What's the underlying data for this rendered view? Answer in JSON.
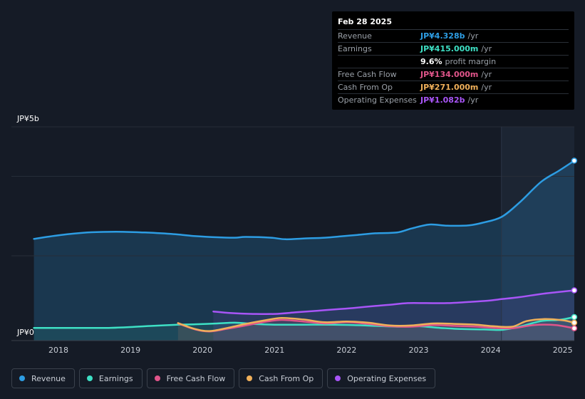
{
  "tooltip": {
    "date": "Feb 28 2025",
    "rows": [
      {
        "label": "Revenue",
        "value": "JP¥4.328b",
        "unit": "/yr",
        "color": "#2d9de3"
      },
      {
        "label": "Earnings",
        "value": "JP¥415.000m",
        "unit": "/yr",
        "color": "#3ee0c5"
      },
      {
        "label": "",
        "value": "9.6%",
        "unit": "profit margin",
        "color": "#ffffff"
      },
      {
        "label": "Free Cash Flow",
        "value": "JP¥134.000m",
        "unit": "/yr",
        "color": "#e0558a"
      },
      {
        "label": "Cash From Op",
        "value": "JP¥271.000m",
        "unit": "/yr",
        "color": "#f0b05a"
      },
      {
        "label": "Operating Expenses",
        "value": "JP¥1.082b",
        "unit": "/yr",
        "color": "#a855f7"
      }
    ]
  },
  "legend": [
    {
      "label": "Revenue",
      "color": "#2d9de3"
    },
    {
      "label": "Earnings",
      "color": "#3ee0c5"
    },
    {
      "label": "Free Cash Flow",
      "color": "#e0558a"
    },
    {
      "label": "Cash From Op",
      "color": "#f0b05a"
    },
    {
      "label": "Operating Expenses",
      "color": "#a855f7"
    }
  ],
  "chart_data": {
    "type": "line",
    "title": "",
    "unit": "JP¥ billions (annual, trailing)",
    "y_top_label": "JP¥5b",
    "y_bottom_label": "JP¥0",
    "ylim": [
      0,
      5
    ],
    "xlim": [
      2017.6,
      2025.2
    ],
    "x_ticks": [
      "2018",
      "2019",
      "2020",
      "2021",
      "2022",
      "2023",
      "2024",
      "2025"
    ],
    "x_tick_values": [
      2018,
      2019,
      2020,
      2021,
      2022,
      2023,
      2024,
      2025
    ],
    "forecast_band_start": 2024.15,
    "series": [
      {
        "name": "Revenue",
        "color": "#2d9de3",
        "x": [
          2017.66,
          2018.0,
          2018.4,
          2018.8,
          2019.2,
          2019.6,
          2019.9,
          2020.2,
          2020.45,
          2020.6,
          2020.95,
          2021.15,
          2021.4,
          2021.7,
          2021.9,
          2022.15,
          2022.4,
          2022.7,
          2022.9,
          2023.15,
          2023.4,
          2023.7,
          2023.9,
          2024.15,
          2024.4,
          2024.7,
          2024.95,
          2025.16
        ],
        "values": [
          2.37,
          2.46,
          2.53,
          2.55,
          2.53,
          2.49,
          2.44,
          2.41,
          2.4,
          2.42,
          2.4,
          2.36,
          2.38,
          2.4,
          2.43,
          2.47,
          2.51,
          2.53,
          2.63,
          2.73,
          2.7,
          2.71,
          2.78,
          2.92,
          3.28,
          3.8,
          4.08,
          4.33
        ]
      },
      {
        "name": "Earnings",
        "color": "#3ee0c5",
        "x": [
          2017.66,
          2018.0,
          2018.4,
          2018.7,
          2019.0,
          2019.3,
          2019.65,
          2019.9,
          2020.2,
          2020.45,
          2020.7,
          2021.0,
          2021.4,
          2021.8,
          2022.1,
          2022.4,
          2022.7,
          2023.0,
          2023.3,
          2023.6,
          2023.9,
          2024.15,
          2024.4,
          2024.7,
          2024.95,
          2025.16
        ],
        "values": [
          0.14,
          0.14,
          0.14,
          0.14,
          0.16,
          0.19,
          0.22,
          0.23,
          0.25,
          0.27,
          0.24,
          0.22,
          0.22,
          0.22,
          0.21,
          0.19,
          0.17,
          0.18,
          0.14,
          0.11,
          0.1,
          0.09,
          0.17,
          0.31,
          0.34,
          0.41
        ]
      },
      {
        "name": "Free Cash Flow",
        "color": "#e0558a",
        "x": [
          2019.66,
          2019.9,
          2020.1,
          2020.35,
          2020.6,
          2020.9,
          2021.1,
          2021.4,
          2021.7,
          2022.0,
          2022.3,
          2022.6,
          2022.9,
          2023.2,
          2023.5,
          2023.8,
          2024.05,
          2024.3,
          2024.6,
          2024.9,
          2025.16
        ],
        "values": [
          0.25,
          0.1,
          0.05,
          0.12,
          0.2,
          0.3,
          0.34,
          0.3,
          0.25,
          0.28,
          0.24,
          0.18,
          0.17,
          0.21,
          0.19,
          0.17,
          0.14,
          0.13,
          0.21,
          0.21,
          0.13
        ]
      },
      {
        "name": "Cash From Op",
        "color": "#f0b05a",
        "x": [
          2019.66,
          2019.9,
          2020.1,
          2020.35,
          2020.6,
          2020.9,
          2021.1,
          2021.4,
          2021.7,
          2022.0,
          2022.3,
          2022.6,
          2022.9,
          2023.2,
          2023.5,
          2023.8,
          2024.05,
          2024.3,
          2024.5,
          2024.75,
          2025.0,
          2025.16
        ],
        "values": [
          0.26,
          0.11,
          0.06,
          0.14,
          0.24,
          0.34,
          0.39,
          0.35,
          0.28,
          0.3,
          0.27,
          0.2,
          0.2,
          0.25,
          0.24,
          0.22,
          0.18,
          0.17,
          0.31,
          0.36,
          0.33,
          0.27
        ]
      },
      {
        "name": "Operating Expenses",
        "color": "#a855f7",
        "x": [
          2020.15,
          2020.4,
          2020.7,
          2021.0,
          2021.3,
          2021.6,
          2021.9,
          2022.1,
          2022.4,
          2022.6,
          2022.85,
          2023.1,
          2023.4,
          2023.7,
          2023.95,
          2024.15,
          2024.4,
          2024.7,
          2024.95,
          2025.16
        ],
        "values": [
          0.55,
          0.51,
          0.49,
          0.49,
          0.53,
          0.57,
          0.61,
          0.64,
          0.69,
          0.72,
          0.76,
          0.76,
          0.76,
          0.79,
          0.82,
          0.86,
          0.91,
          0.99,
          1.04,
          1.08
        ]
      }
    ]
  }
}
